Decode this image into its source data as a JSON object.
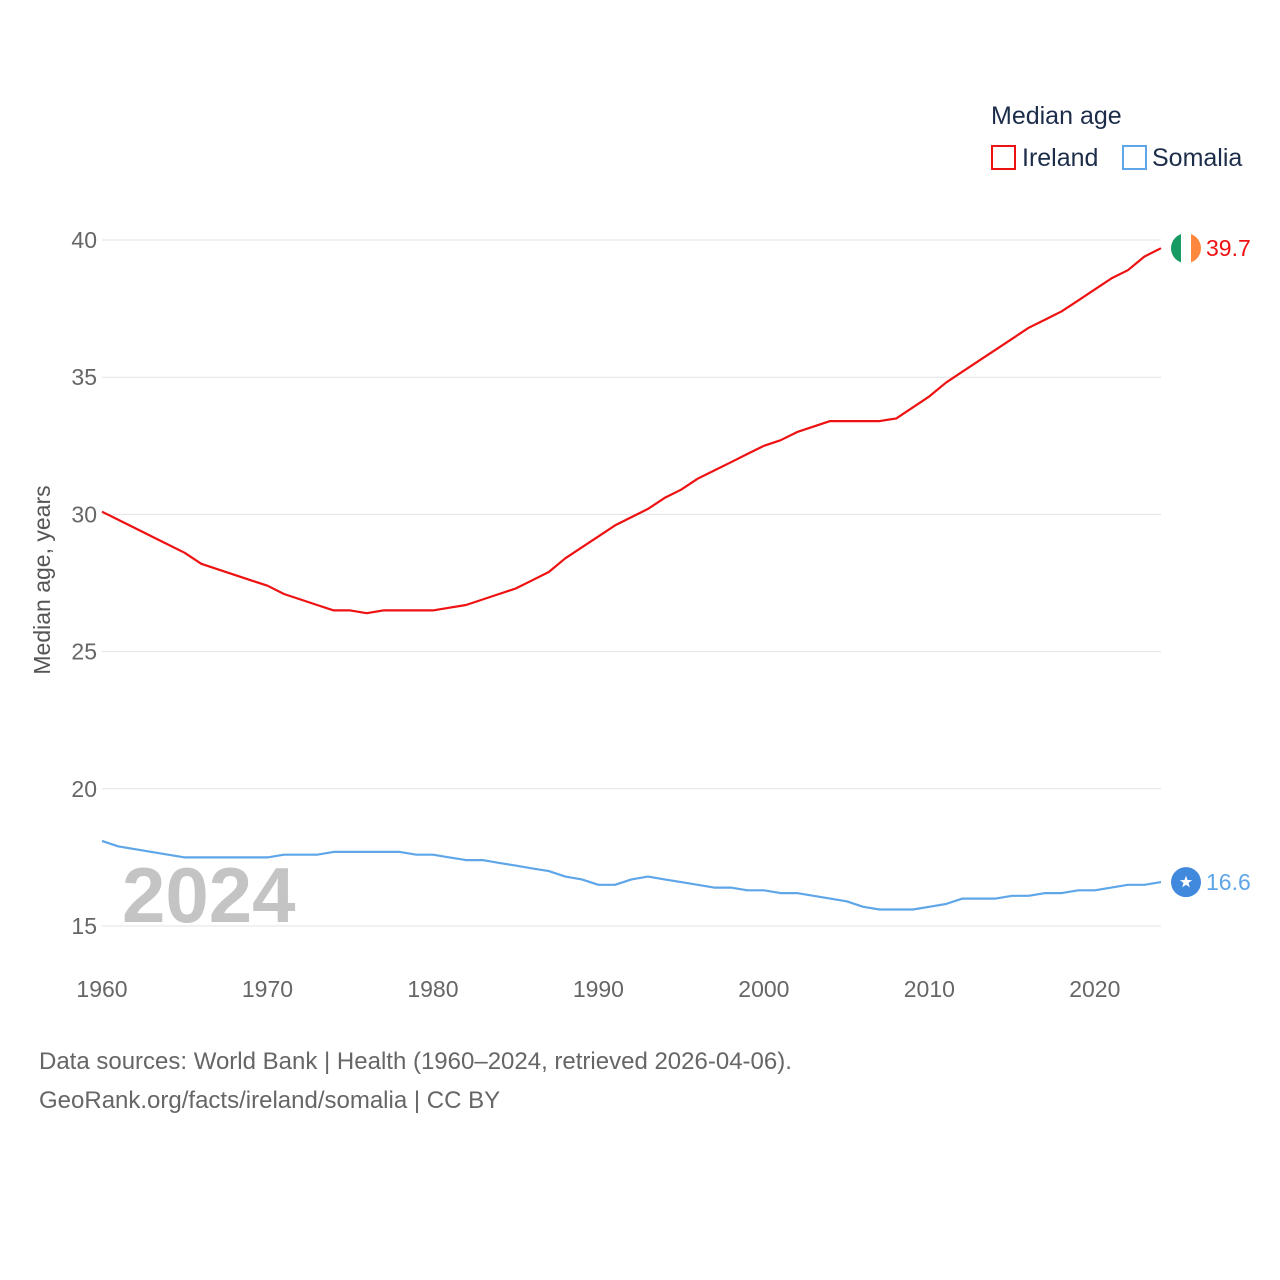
{
  "legend": {
    "title": "Median age",
    "items": [
      {
        "label": "Ireland",
        "color": "#ee1111"
      },
      {
        "label": "Somalia",
        "color": "#5ea6e8"
      }
    ]
  },
  "chart_data": {
    "type": "line",
    "ylabel": "Median age, years",
    "xlabel": "",
    "xlim": [
      1960,
      2024
    ],
    "ylim": [
      15,
      40
    ],
    "x_ticks": [
      1960,
      1970,
      1980,
      1990,
      2000,
      2010,
      2020
    ],
    "y_ticks": [
      15,
      20,
      25,
      30,
      35,
      40
    ],
    "x_tick_labels": [
      "1960",
      "1970",
      "1980",
      "1990",
      "2000",
      "2010",
      "2020"
    ],
    "y_tick_labels": [
      "15",
      "20",
      "25",
      "30",
      "35",
      "40"
    ],
    "grid": true,
    "highlight_year": "2024",
    "series": [
      {
        "name": "Ireland",
        "color": "#ee1111",
        "end_label": "39.7",
        "marker_icon": "ireland-flag-icon",
        "flag_colors": [
          "#169b62",
          "#ffffff",
          "#ff883e"
        ],
        "x": [
          1960,
          1961,
          1962,
          1963,
          1964,
          1965,
          1966,
          1967,
          1968,
          1969,
          1970,
          1971,
          1972,
          1973,
          1974,
          1975,
          1976,
          1977,
          1978,
          1979,
          1980,
          1981,
          1982,
          1983,
          1984,
          1985,
          1986,
          1987,
          1988,
          1989,
          1990,
          1991,
          1992,
          1993,
          1994,
          1995,
          1996,
          1997,
          1998,
          1999,
          2000,
          2001,
          2002,
          2003,
          2004,
          2005,
          2006,
          2007,
          2008,
          2009,
          2010,
          2011,
          2012,
          2013,
          2014,
          2015,
          2016,
          2017,
          2018,
          2019,
          2020,
          2021,
          2022,
          2023,
          2024
        ],
        "values": [
          30.1,
          29.8,
          29.5,
          29.2,
          28.9,
          28.6,
          28.2,
          28.0,
          27.8,
          27.6,
          27.4,
          27.1,
          26.9,
          26.7,
          26.5,
          26.5,
          26.4,
          26.5,
          26.5,
          26.5,
          26.5,
          26.6,
          26.7,
          26.9,
          27.1,
          27.3,
          27.6,
          27.9,
          28.4,
          28.8,
          29.2,
          29.6,
          29.9,
          30.2,
          30.6,
          30.9,
          31.3,
          31.6,
          31.9,
          32.2,
          32.5,
          32.7,
          33.0,
          33.2,
          33.4,
          33.4,
          33.4,
          33.4,
          33.5,
          33.9,
          34.3,
          34.8,
          35.2,
          35.6,
          36.0,
          36.4,
          36.8,
          37.1,
          37.4,
          37.8,
          38.2,
          38.6,
          38.9,
          39.4,
          39.7
        ]
      },
      {
        "name": "Somalia",
        "color": "#5ea6e8",
        "end_label": "16.6",
        "marker_icon": "somalia-flag-icon",
        "flag_colors": [
          "#4189dd",
          "#ffffff"
        ],
        "x": [
          1960,
          1961,
          1962,
          1963,
          1964,
          1965,
          1966,
          1967,
          1968,
          1969,
          1970,
          1971,
          1972,
          1973,
          1974,
          1975,
          1976,
          1977,
          1978,
          1979,
          1980,
          1981,
          1982,
          1983,
          1984,
          1985,
          1986,
          1987,
          1988,
          1989,
          1990,
          1991,
          1992,
          1993,
          1994,
          1995,
          1996,
          1997,
          1998,
          1999,
          2000,
          2001,
          2002,
          2003,
          2004,
          2005,
          2006,
          2007,
          2008,
          2009,
          2010,
          2011,
          2012,
          2013,
          2014,
          2015,
          2016,
          2017,
          2018,
          2019,
          2020,
          2021,
          2022,
          2023,
          2024
        ],
        "values": [
          18.1,
          17.9,
          17.8,
          17.7,
          17.6,
          17.5,
          17.5,
          17.5,
          17.5,
          17.5,
          17.5,
          17.6,
          17.6,
          17.6,
          17.7,
          17.7,
          17.7,
          17.7,
          17.7,
          17.6,
          17.6,
          17.5,
          17.4,
          17.4,
          17.3,
          17.2,
          17.1,
          17.0,
          16.8,
          16.7,
          16.5,
          16.5,
          16.7,
          16.8,
          16.7,
          16.6,
          16.5,
          16.4,
          16.4,
          16.3,
          16.3,
          16.2,
          16.2,
          16.1,
          16.0,
          15.9,
          15.7,
          15.6,
          15.6,
          15.6,
          15.7,
          15.8,
          16.0,
          16.0,
          16.0,
          16.1,
          16.1,
          16.2,
          16.2,
          16.3,
          16.3,
          16.4,
          16.5,
          16.5,
          16.6
        ]
      }
    ]
  },
  "footer": {
    "sources": "Data sources: World Bank | Health (1960–2024, retrieved 2026-04-06).",
    "credit": "GeoRank.org/facts/ireland/somalia | CC BY"
  }
}
